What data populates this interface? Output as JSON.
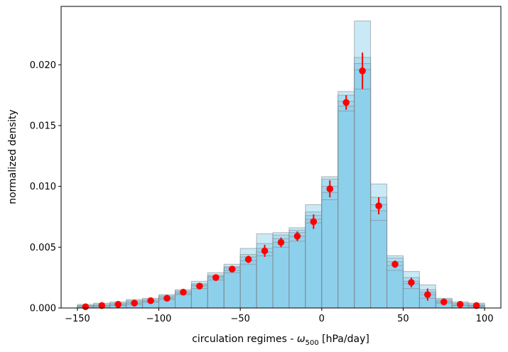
{
  "chart_data": {
    "type": "bar",
    "title": "",
    "xlabel_prefix": "circulation regimes - ",
    "xlabel_symbol": "ω",
    "xlabel_subscript": "500",
    "xlabel_suffix": " [hPa/day]",
    "ylabel": "normalized density",
    "xlim": [
      -160,
      110
    ],
    "ylim": [
      0,
      0.0248
    ],
    "xticks": [
      -150,
      -100,
      -50,
      0,
      50,
      100
    ],
    "xtick_labels": [
      "−150",
      "−100",
      "−50",
      "0",
      "50",
      "100"
    ],
    "yticks": [
      0,
      0.005,
      0.01,
      0.015,
      0.02
    ],
    "ytick_labels": [
      "0.000",
      "0.005",
      "0.010",
      "0.015",
      "0.020"
    ],
    "bin_width": 10,
    "bin_centers": [
      -145,
      -135,
      -125,
      -115,
      -105,
      -95,
      -85,
      -75,
      -65,
      -55,
      -45,
      -35,
      -25,
      -15,
      -5,
      5,
      15,
      25,
      35,
      45,
      55,
      65,
      75,
      85,
      95
    ],
    "hist_layers": [
      [
        0.0003,
        0.0004,
        0.0005,
        0.0007,
        0.0008,
        0.0011,
        0.0015,
        0.0022,
        0.0029,
        0.0036,
        0.0049,
        0.0061,
        0.0062,
        0.0066,
        0.0085,
        0.0108,
        0.0178,
        0.0236,
        0.0102,
        0.0043,
        0.003,
        0.0019,
        0.0008,
        0.0005,
        0.0004
      ],
      [
        0.0002,
        0.0003,
        0.0004,
        0.0006,
        0.0007,
        0.001,
        0.0014,
        0.002,
        0.0027,
        0.0034,
        0.0044,
        0.0053,
        0.006,
        0.0064,
        0.0079,
        0.0106,
        0.0175,
        0.0206,
        0.0091,
        0.0041,
        0.0025,
        0.0015,
        0.0007,
        0.0004,
        0.0003
      ],
      [
        0.0002,
        0.0002,
        0.0003,
        0.0005,
        0.0006,
        0.0009,
        0.0013,
        0.0019,
        0.0026,
        0.0033,
        0.0042,
        0.0049,
        0.0057,
        0.0062,
        0.0076,
        0.01,
        0.017,
        0.0201,
        0.0085,
        0.0038,
        0.0022,
        0.0013,
        0.0006,
        0.0003,
        0.0002
      ],
      [
        0.0001,
        0.0002,
        0.0003,
        0.0004,
        0.0005,
        0.0008,
        0.0012,
        0.0018,
        0.0025,
        0.0031,
        0.0039,
        0.0046,
        0.0054,
        0.0059,
        0.0073,
        0.0095,
        0.0166,
        0.0196,
        0.008,
        0.0035,
        0.002,
        0.0011,
        0.0005,
        0.0002,
        0.0002
      ],
      [
        0.0001,
        0.0001,
        0.0002,
        0.0003,
        0.0005,
        0.0007,
        0.0011,
        0.0016,
        0.0023,
        0.0029,
        0.0036,
        0.0043,
        0.005,
        0.0055,
        0.007,
        0.0089,
        0.0162,
        0.018,
        0.0072,
        0.0031,
        0.0016,
        0.0008,
        0.0004,
        0.0002,
        0.0001
      ]
    ],
    "mean_points": {
      "y": [
        0.0001,
        0.0002,
        0.0003,
        0.0004,
        0.0006,
        0.0008,
        0.0013,
        0.0018,
        0.0025,
        0.0032,
        0.004,
        0.0047,
        0.0054,
        0.0059,
        0.0071,
        0.0098,
        0.0169,
        0.0195,
        0.0084,
        0.0036,
        0.0021,
        0.0011,
        0.0005,
        0.0003,
        0.0002
      ],
      "yerr": [
        5e-05,
        5e-05,
        5e-05,
        5e-05,
        5e-05,
        5e-05,
        0.0001,
        0.0001,
        0.0001,
        0.0001,
        0.0003,
        0.0005,
        0.0004,
        0.0004,
        0.0006,
        0.0007,
        0.0006,
        0.0015,
        0.0007,
        0.0003,
        0.0004,
        0.0005,
        0.0001,
        5e-05,
        5e-05
      ]
    },
    "colors": {
      "bar_fill": "#87ceeb",
      "bar_edge": "#7f7f7f",
      "point": "#ff0000"
    },
    "grid": false,
    "legend": "none"
  }
}
